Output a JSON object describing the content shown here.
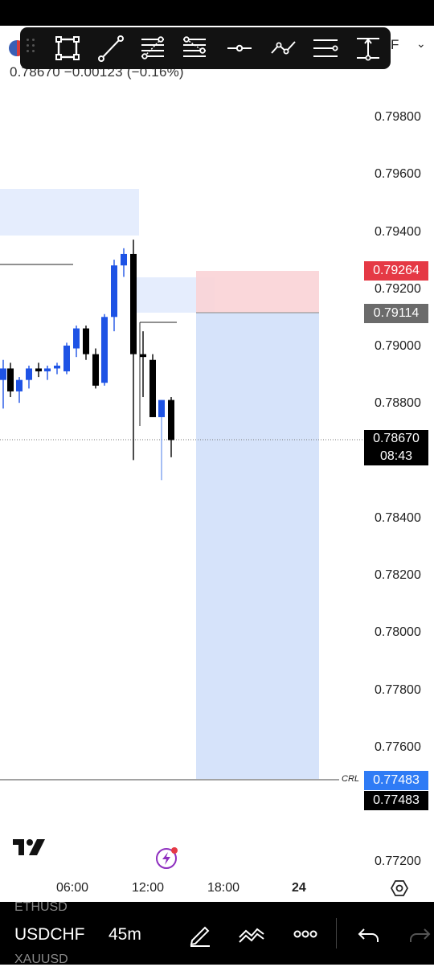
{
  "header": {
    "symbol_partial": "F",
    "last_price": "0.78670",
    "change": "−0.00123",
    "change_pct": "(−0.16%)"
  },
  "toolbar": {
    "tools": [
      "rectangle-icon",
      "trend-line-icon",
      "fib-retracement-icon",
      "fib-extension-icon",
      "horizontal-ray-icon",
      "path-icon",
      "parallel-channel-icon",
      "long-position-icon"
    ]
  },
  "chart": {
    "price_labels": [
      "0.79800",
      "0.79600",
      "0.79400",
      "0.79200",
      "0.79000",
      "0.78800",
      "0.78400",
      "0.78200",
      "0.78000",
      "0.77800",
      "0.77600",
      "0.77200"
    ],
    "tags": {
      "stop_loss": "0.79264",
      "entry": "0.79114",
      "current_price": "0.78670",
      "countdown": "08:43",
      "target_blue": "0.77483",
      "target_black": "0.77483",
      "crl": "CRL"
    },
    "time_labels": [
      "06:00",
      "12:00",
      "18:00",
      "24"
    ],
    "colors": {
      "up": "#1e53e5",
      "down": "#000000",
      "stop_zone": "#f9d3d6",
      "target_zone": "#d6e3fa",
      "zone": "#e5edfd",
      "sl_tag": "#e53945",
      "entry_tag": "#6b6b6b",
      "target_tag": "#2f7bf5"
    }
  },
  "bottom": {
    "symbol_above": "ETHUSD",
    "symbol": "USDCHF",
    "symbol_below": "XAUUSD",
    "interval": "45m"
  }
}
